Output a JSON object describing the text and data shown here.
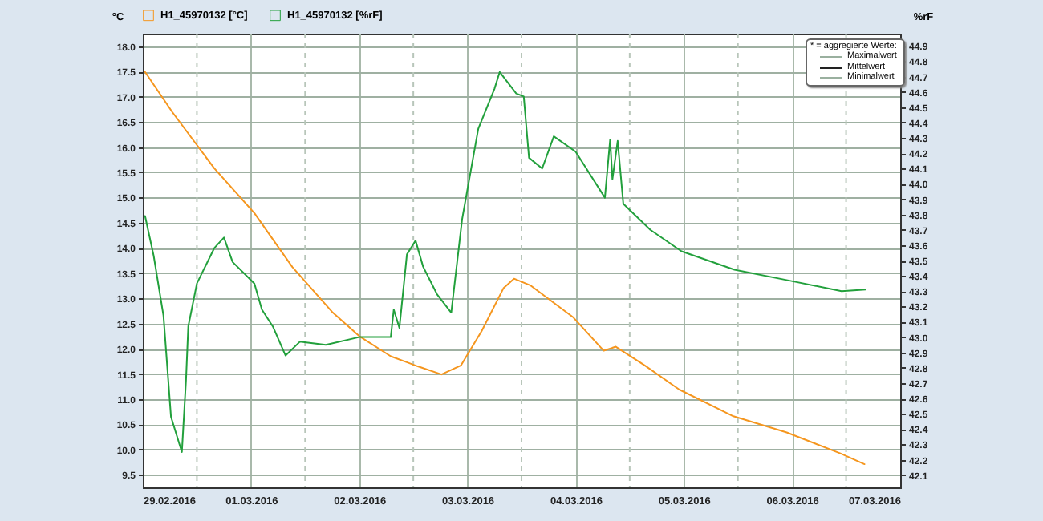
{
  "chart_data": {
    "type": "line",
    "ylabel": "°C",
    "y2label": "%rF",
    "annotations": [
      "* = aggregierte Werte:",
      "Maximalwert",
      "Mittelwert",
      "Minimalwert"
    ],
    "xlim": [
      "2016-02-29",
      "2016-03-07"
    ],
    "xticks": [
      {
        "value": "2016-02-29",
        "label": "29.02.2016"
      },
      {
        "value": "2016-02-29T12:00",
        "label": null
      },
      {
        "value": "2016-03-01",
        "label": "01.03.2016"
      },
      {
        "value": "2016-03-01T12:00",
        "label": null
      },
      {
        "value": "2016-03-02",
        "label": "02.03.2016"
      },
      {
        "value": "2016-03-02T12:00",
        "label": null
      },
      {
        "value": "2016-03-03",
        "label": "03.03.2016"
      },
      {
        "value": "2016-03-03T12:00",
        "label": null
      },
      {
        "value": "2016-03-04",
        "label": "04.03.2016"
      },
      {
        "value": "2016-03-04T12:00",
        "label": null
      },
      {
        "value": "2016-03-05",
        "label": "05.03.2016"
      },
      {
        "value": "2016-03-05T12:00",
        "label": null
      },
      {
        "value": "2016-03-06",
        "label": "06.03.2016"
      },
      {
        "value": "2016-03-06T12:00",
        "label": null
      },
      {
        "value": "2016-03-07",
        "label": "07.03.2016"
      }
    ],
    "ylim": [
      9.25,
      18.25
    ],
    "yticks": [
      {
        "value": 9.5,
        "label": "9.5"
      },
      {
        "value": 10,
        "label": "10.0"
      },
      {
        "value": 10.5,
        "label": "10.5"
      },
      {
        "value": 11,
        "label": "11.0"
      },
      {
        "value": 11.5,
        "label": "11.5"
      },
      {
        "value": 12,
        "label": "12.0"
      },
      {
        "value": 12.5,
        "label": "12.5"
      },
      {
        "value": 13,
        "label": "13.0"
      },
      {
        "value": 13.5,
        "label": "13.5"
      },
      {
        "value": 14,
        "label": "14.0"
      },
      {
        "value": 14.5,
        "label": "14.5"
      },
      {
        "value": 15,
        "label": "15.0"
      },
      {
        "value": 15.5,
        "label": "15.5"
      },
      {
        "value": 16,
        "label": "16.0"
      },
      {
        "value": 16.5,
        "label": "16.5"
      },
      {
        "value": 17,
        "label": "17.0"
      },
      {
        "value": 17.5,
        "label": "17.5"
      },
      {
        "value": 18,
        "label": "18.0"
      }
    ],
    "y2lim": [
      42.02,
      44.98
    ],
    "y2ticks": [
      {
        "value": 42.1,
        "label": "42.1"
      },
      {
        "value": 42.2,
        "label": "42.2"
      },
      {
        "value": 42.3,
        "label": "42.3"
      },
      {
        "value": 42.4,
        "label": "42.4"
      },
      {
        "value": 42.5,
        "label": "42.5"
      },
      {
        "value": 42.6,
        "label": "42.6"
      },
      {
        "value": 42.7,
        "label": "42.7"
      },
      {
        "value": 42.8,
        "label": "42.8"
      },
      {
        "value": 42.9,
        "label": "42.9"
      },
      {
        "value": 43,
        "label": "43.0"
      },
      {
        "value": 43.1,
        "label": "43.1"
      },
      {
        "value": 43.2,
        "label": "43.2"
      },
      {
        "value": 43.3,
        "label": "43.3"
      },
      {
        "value": 43.4,
        "label": "43.4"
      },
      {
        "value": 43.5,
        "label": "43.5"
      },
      {
        "value": 43.6,
        "label": "43.6"
      },
      {
        "value": 43.7,
        "label": "43.7"
      },
      {
        "value": 43.8,
        "label": "43.8"
      },
      {
        "value": 43.9,
        "label": "43.9"
      },
      {
        "value": 44,
        "label": "44.0"
      },
      {
        "value": 44.1,
        "label": "44.1"
      },
      {
        "value": 44.2,
        "label": "44.2"
      },
      {
        "value": 44.3,
        "label": "44.3"
      },
      {
        "value": 44.4,
        "label": "44.4"
      },
      {
        "value": 44.5,
        "label": "44.5"
      },
      {
        "value": 44.6,
        "label": "44.6"
      },
      {
        "value": 44.7,
        "label": "44.7"
      },
      {
        "value": 44.8,
        "label": "44.8"
      },
      {
        "value": 44.9,
        "label": "44.9"
      }
    ],
    "grid": true,
    "legend": "top left",
    "marker": "none",
    "line_style": "solid",
    "series": [
      {
        "name": "H1_45970132 [°C]",
        "color": "#f5961e",
        "x": [
          "2016-02-29T00:30",
          "2016-02-29T06:30",
          "2016-02-29T15:50",
          "2016-03-01T00:45",
          "2016-03-01T09:10",
          "2016-03-01T18:00",
          "2016-03-02T00:00",
          "2016-03-02T07:00",
          "2016-03-02T13:00",
          "2016-03-02T18:15",
          "2016-03-02T22:35",
          "2016-03-03T03:10",
          "2016-03-03T08:00",
          "2016-03-03T10:20",
          "2016-03-03T13:55",
          "2016-03-03T23:30",
          "2016-03-04T06:15",
          "2016-03-04T08:55",
          "2016-03-04T15:20",
          "2016-03-04T23:00",
          "2016-03-05T11:00",
          "2016-03-05T22:50",
          "2016-03-06T10:50",
          "2016-03-06T16:05"
        ],
        "values": [
          17.49,
          16.7,
          15.58,
          14.69,
          13.62,
          12.73,
          12.25,
          11.85,
          11.65,
          11.49,
          11.67,
          12.35,
          13.2,
          13.39,
          13.26,
          12.62,
          11.96,
          12.04,
          11.67,
          11.19,
          10.66,
          10.34,
          9.92,
          9.71
        ]
      },
      {
        "name": "H1_45970132 [%rF]",
        "color": "#22a03c",
        "axis": "y2",
        "x": [
          "2016-02-29T00:30",
          "2016-02-29T02:25",
          "2016-02-29T04:35",
          "2016-02-29T06:15",
          "2016-02-29T08:40",
          "2016-02-29T09:35",
          "2016-02-29T10:05",
          "2016-02-29T12:00",
          "2016-02-29T15:50",
          "2016-02-29T18:00",
          "2016-02-29T19:55",
          "2016-03-01T00:45",
          "2016-03-01T02:25",
          "2016-03-01T04:50",
          "2016-03-01T07:40",
          "2016-03-01T10:50",
          "2016-03-01T16:35",
          "2016-03-02T00:00",
          "2016-03-02T07:00",
          "2016-03-02T07:40",
          "2016-03-02T08:55",
          "2016-03-02T10:35",
          "2016-03-02T12:30",
          "2016-03-02T14:10",
          "2016-03-02T17:15",
          "2016-03-02T20:25",
          "2016-03-02T22:50",
          "2016-03-03T02:25",
          "2016-03-03T06:00",
          "2016-03-03T07:10",
          "2016-03-03T10:50",
          "2016-03-03T12:30",
          "2016-03-03T13:40",
          "2016-03-03T16:35",
          "2016-03-03T19:10",
          "2016-03-04T00:00",
          "2016-03-04T06:30",
          "2016-03-04T07:40",
          "2016-03-04T08:10",
          "2016-03-04T09:20",
          "2016-03-04T10:35",
          "2016-03-04T16:35",
          "2016-03-04T23:30",
          "2016-03-05T11:15",
          "2016-03-05T23:15",
          "2016-03-06T11:00",
          "2016-03-06T16:20"
        ],
        "values": [
          43.79,
          43.53,
          43.14,
          42.48,
          42.25,
          42.72,
          43.07,
          43.35,
          43.58,
          43.65,
          43.49,
          43.35,
          43.18,
          43.07,
          42.88,
          42.97,
          42.95,
          43.0,
          43.0,
          43.18,
          43.06,
          43.54,
          43.63,
          43.46,
          43.28,
          43.16,
          43.77,
          44.36,
          44.62,
          44.73,
          44.59,
          44.57,
          44.17,
          44.1,
          44.31,
          44.21,
          43.91,
          44.29,
          44.03,
          44.28,
          43.87,
          43.7,
          43.56,
          43.44,
          43.37,
          43.3,
          43.31
        ]
      }
    ]
  }
}
